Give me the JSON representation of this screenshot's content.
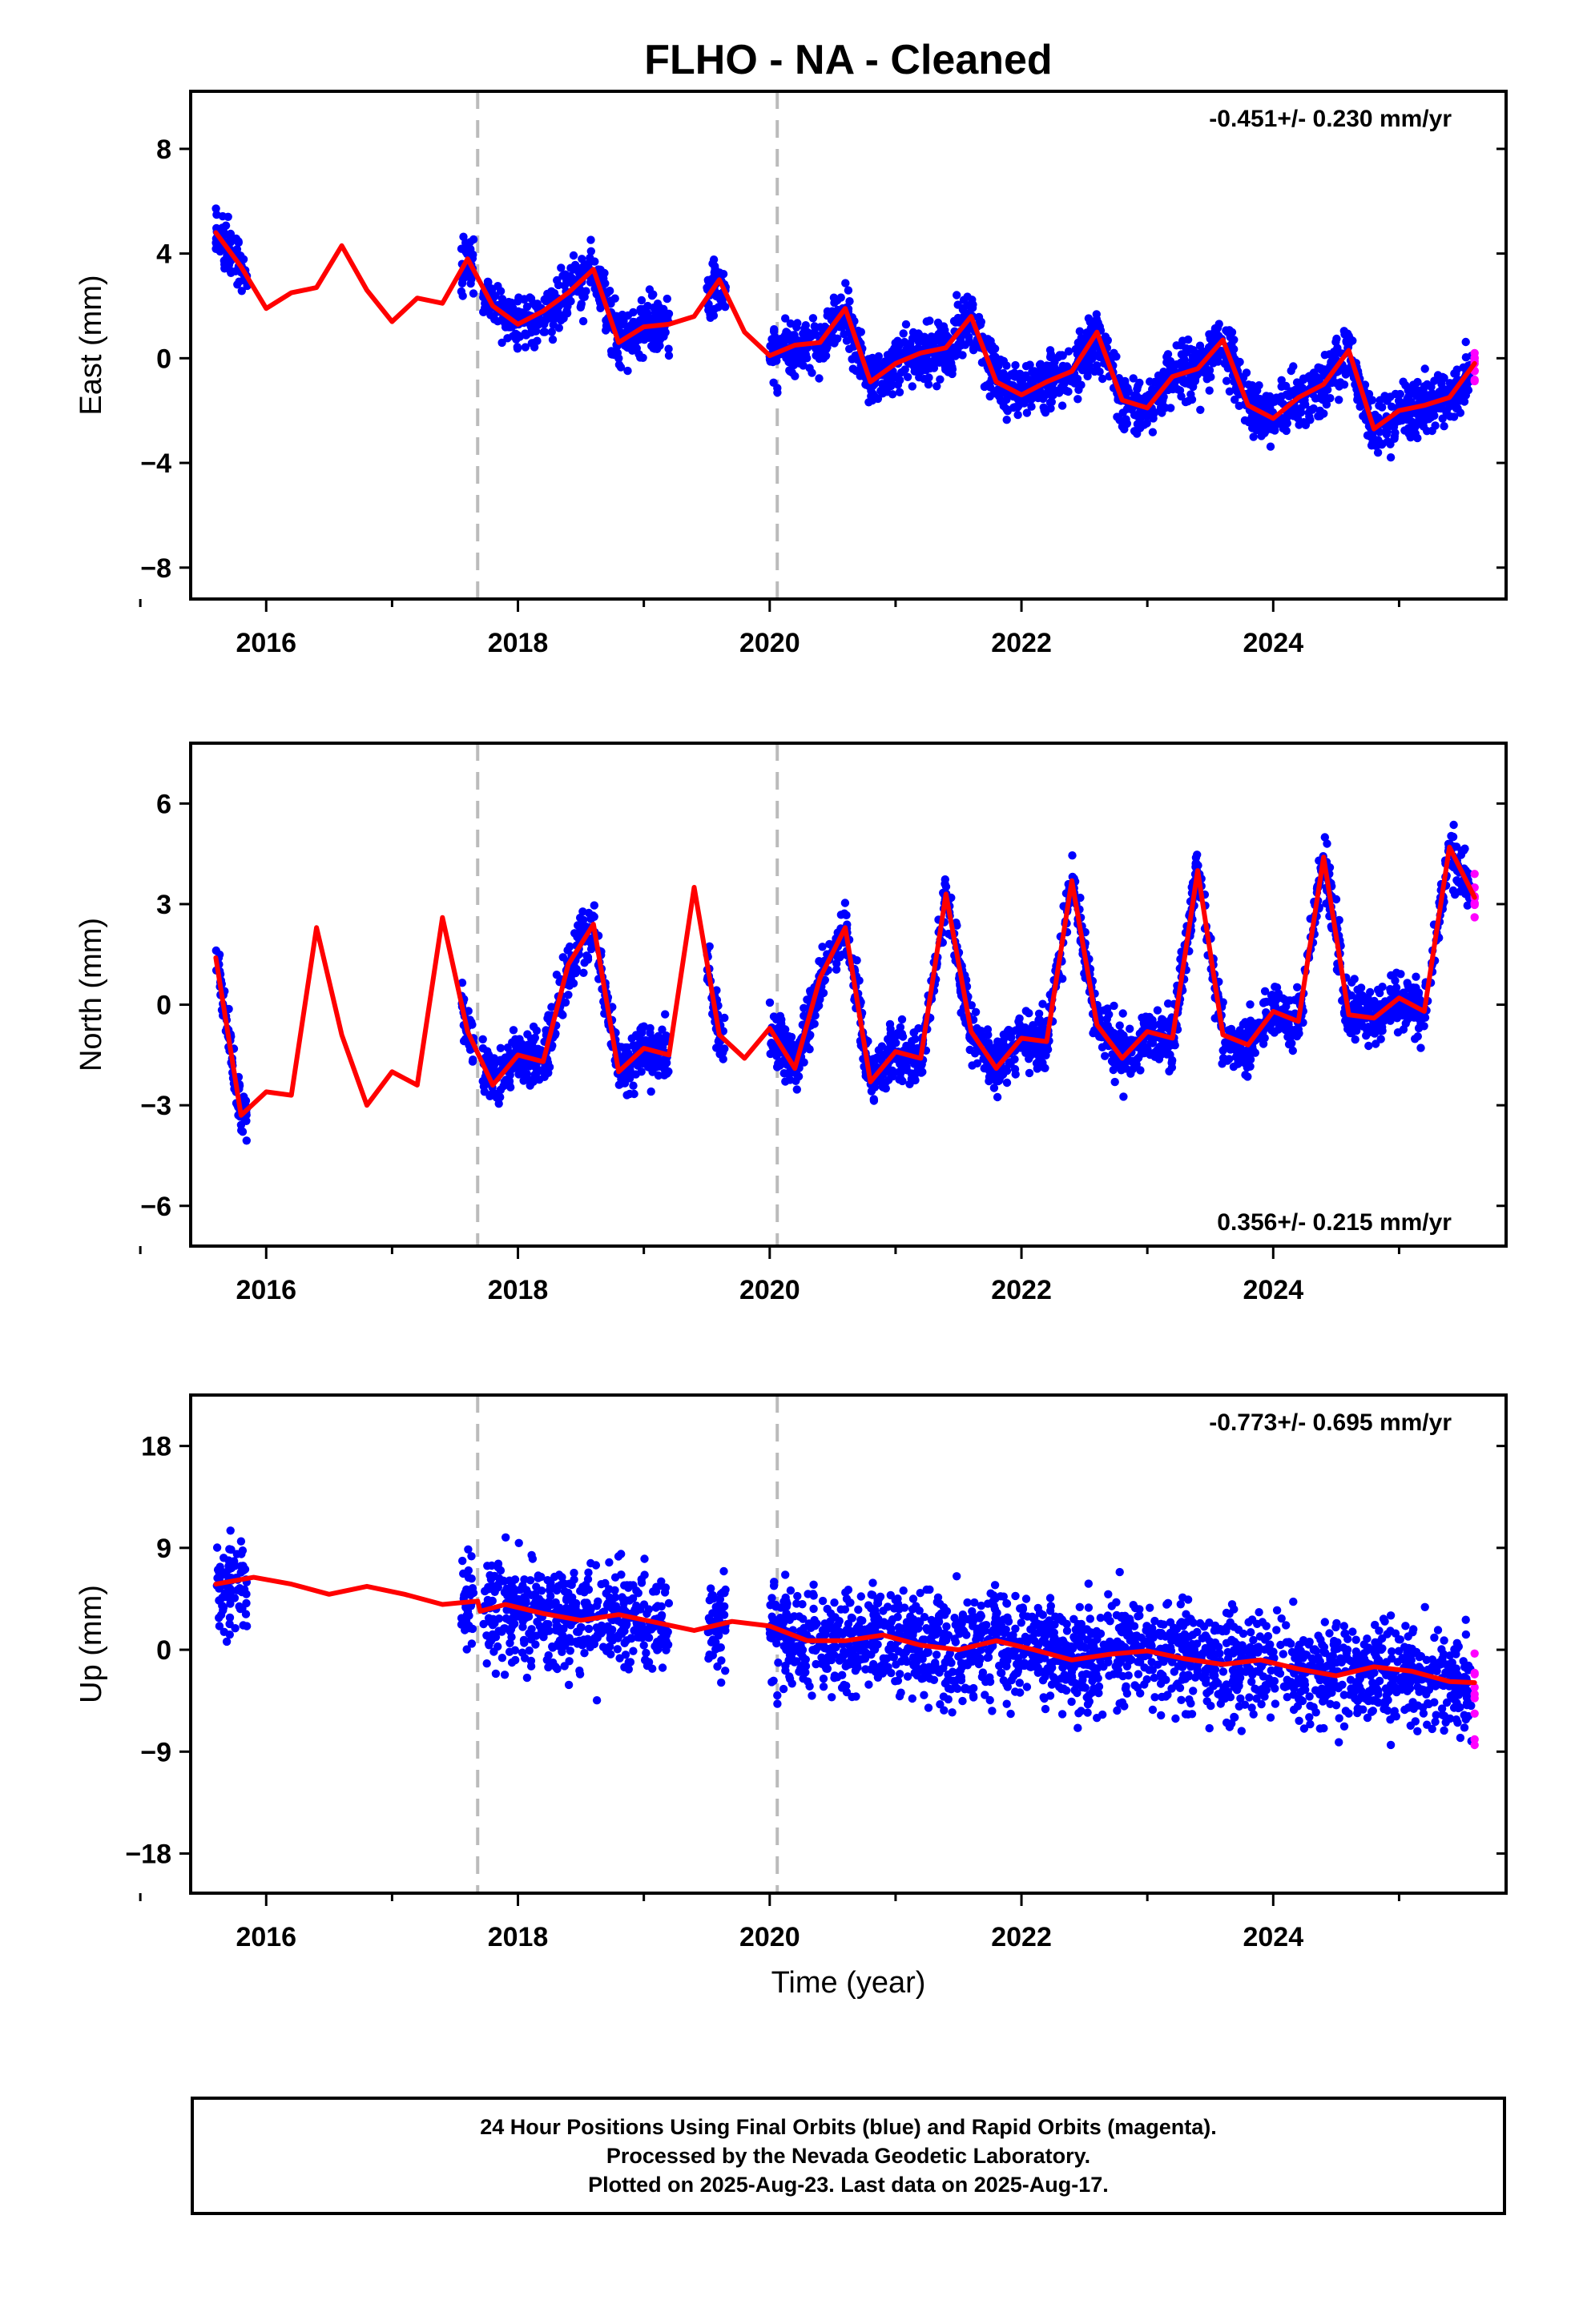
{
  "title": "FLHO  - NA - Cleaned",
  "colors": {
    "final_orbits": "#0000ff",
    "rapid_orbits": "#ff00ff",
    "model": "#ff0000",
    "event_lines": "#bbbbbb"
  },
  "xlabel": "Time (year)",
  "footer": [
    "24 Hour Positions Using Final Orbits (blue) and Rapid Orbits (magenta).",
    "Processed by the Nevada Geodetic Laboratory.",
    "Plotted on 2025-Aug-23. Last data on 2025-Aug-17."
  ],
  "chart_data": [
    {
      "type": "scatter",
      "ylabel": "East (mm)",
      "rate": "-0.451+/- 0.230 mm/yr",
      "rate_position": "top-right",
      "xlim": [
        2015.4,
        2025.85
      ],
      "ylim": [
        -9.2,
        10.2
      ],
      "xticks": [
        2016,
        2018,
        2020,
        2022,
        2024
      ],
      "yticks": [
        -8,
        -4,
        0,
        4,
        8
      ],
      "event_lines": [
        2017.68,
        2020.06
      ],
      "data_segments": [
        [
          2015.6,
          2015.85
        ],
        [
          2017.55,
          2017.65
        ],
        [
          2017.72,
          2019.2
        ],
        [
          2019.5,
          2019.65
        ],
        [
          2020.0,
          2025.58
        ]
      ],
      "model_curve": {
        "x": [
          2015.6,
          2015.8,
          2016.0,
          2016.2,
          2016.4,
          2016.6,
          2016.8,
          2017.0,
          2017.2,
          2017.4,
          2017.6,
          2017.8,
          2018.0,
          2018.2,
          2018.4,
          2018.6,
          2018.8,
          2019.0,
          2019.2,
          2019.4,
          2019.6,
          2019.8,
          2020.0,
          2020.2,
          2020.4,
          2020.6,
          2020.8,
          2021.0,
          2021.2,
          2021.4,
          2021.6,
          2021.8,
          2022.0,
          2022.2,
          2022.4,
          2022.6,
          2022.8,
          2023.0,
          2023.2,
          2023.4,
          2023.6,
          2023.8,
          2024.0,
          2024.2,
          2024.4,
          2024.6,
          2024.8,
          2025.0,
          2025.2,
          2025.4,
          2025.6
        ],
        "y": [
          4.8,
          3.5,
          1.9,
          2.5,
          2.7,
          4.3,
          2.6,
          1.4,
          2.3,
          2.1,
          3.8,
          2.0,
          1.3,
          1.8,
          2.5,
          3.4,
          0.6,
          1.2,
          1.3,
          1.6,
          3.0,
          1.0,
          0.1,
          0.5,
          0.6,
          1.9,
          -0.9,
          -0.2,
          0.2,
          0.4,
          1.6,
          -0.9,
          -1.4,
          -0.9,
          -0.5,
          1.0,
          -1.6,
          -1.9,
          -0.7,
          -0.4,
          0.7,
          -1.8,
          -2.3,
          -1.5,
          -1.0,
          0.3,
          -2.7,
          -2.0,
          -1.8,
          -1.5,
          -0.2
        ]
      }
    },
    {
      "type": "scatter",
      "ylabel": "North (mm)",
      "rate": "0.356+/- 0.215 mm/yr",
      "rate_position": "bottom-right",
      "xlim": [
        2015.4,
        2025.85
      ],
      "ylim": [
        -7.2,
        7.8
      ],
      "xticks": [
        2016,
        2018,
        2020,
        2022,
        2024
      ],
      "yticks": [
        -6,
        -3,
        0,
        3,
        6
      ],
      "event_lines": [
        2017.68,
        2020.06
      ],
      "data_segments": [
        [
          2015.6,
          2015.85
        ],
        [
          2017.55,
          2017.65
        ],
        [
          2017.72,
          2019.2
        ],
        [
          2019.5,
          2019.65
        ],
        [
          2020.0,
          2025.58
        ]
      ],
      "model_curve": {
        "x": [
          2015.6,
          2015.8,
          2016.0,
          2016.2,
          2016.4,
          2016.6,
          2016.8,
          2017.0,
          2017.2,
          2017.4,
          2017.6,
          2017.8,
          2018.0,
          2018.2,
          2018.4,
          2018.6,
          2018.8,
          2019.0,
          2019.2,
          2019.4,
          2019.6,
          2019.8,
          2020.0,
          2020.2,
          2020.4,
          2020.6,
          2020.8,
          2021.0,
          2021.2,
          2021.4,
          2021.6,
          2021.8,
          2022.0,
          2022.2,
          2022.4,
          2022.6,
          2022.8,
          2023.0,
          2023.2,
          2023.4,
          2023.6,
          2023.8,
          2024.0,
          2024.2,
          2024.4,
          2024.6,
          2024.8,
          2025.0,
          2025.2,
          2025.4,
          2025.6
        ],
        "y": [
          1.4,
          -3.3,
          -2.6,
          -2.7,
          2.3,
          -0.9,
          -3.0,
          -2.0,
          -2.4,
          2.6,
          -0.8,
          -2.4,
          -1.5,
          -1.7,
          1.2,
          2.4,
          -2.0,
          -1.3,
          -1.5,
          3.5,
          -0.9,
          -1.6,
          -0.7,
          -1.9,
          0.8,
          2.3,
          -2.3,
          -1.4,
          -1.6,
          3.3,
          -0.8,
          -1.9,
          -1.0,
          -1.1,
          3.7,
          -0.6,
          -1.6,
          -0.8,
          -1.0,
          4.0,
          -0.9,
          -1.2,
          -0.2,
          -0.5,
          4.4,
          -0.3,
          -0.4,
          0.2,
          -0.2,
          4.7,
          3.2
        ]
      }
    },
    {
      "type": "scatter",
      "ylabel": "Up (mm)",
      "rate": "-0.773+/- 0.695 mm/yr",
      "rate_position": "top-right",
      "xlim": [
        2015.4,
        2025.85
      ],
      "ylim": [
        -21.5,
        22.5
      ],
      "xticks": [
        2016,
        2018,
        2020,
        2022,
        2024
      ],
      "yticks": [
        -18,
        -9,
        0,
        9,
        18
      ],
      "event_lines": [
        2017.68,
        2020.06
      ],
      "data_segments": [
        [
          2015.6,
          2015.85
        ],
        [
          2017.55,
          2017.65
        ],
        [
          2017.72,
          2019.2
        ],
        [
          2019.5,
          2019.65
        ],
        [
          2020.0,
          2025.58
        ]
      ],
      "model_curve": {
        "x": [
          2015.6,
          2015.9,
          2016.2,
          2016.5,
          2016.8,
          2017.1,
          2017.4,
          2017.68,
          2017.7,
          2017.9,
          2018.2,
          2018.5,
          2018.8,
          2019.1,
          2019.4,
          2019.7,
          2020.0,
          2020.3,
          2020.6,
          2020.9,
          2021.2,
          2021.5,
          2021.8,
          2022.1,
          2022.4,
          2022.7,
          2023.0,
          2023.3,
          2023.6,
          2023.9,
          2024.2,
          2024.5,
          2024.8,
          2025.1,
          2025.4,
          2025.6
        ],
        "y": [
          5.8,
          6.4,
          5.8,
          4.9,
          5.6,
          4.9,
          4.0,
          4.3,
          3.4,
          4.0,
          3.2,
          2.6,
          3.1,
          2.4,
          1.7,
          2.5,
          2.1,
          0.8,
          0.8,
          1.3,
          0.4,
          0.0,
          0.8,
          0.0,
          -0.9,
          -0.4,
          -0.1,
          -0.8,
          -1.3,
          -0.9,
          -1.7,
          -2.3,
          -1.5,
          -1.9,
          -2.8,
          -2.9
        ]
      }
    }
  ]
}
